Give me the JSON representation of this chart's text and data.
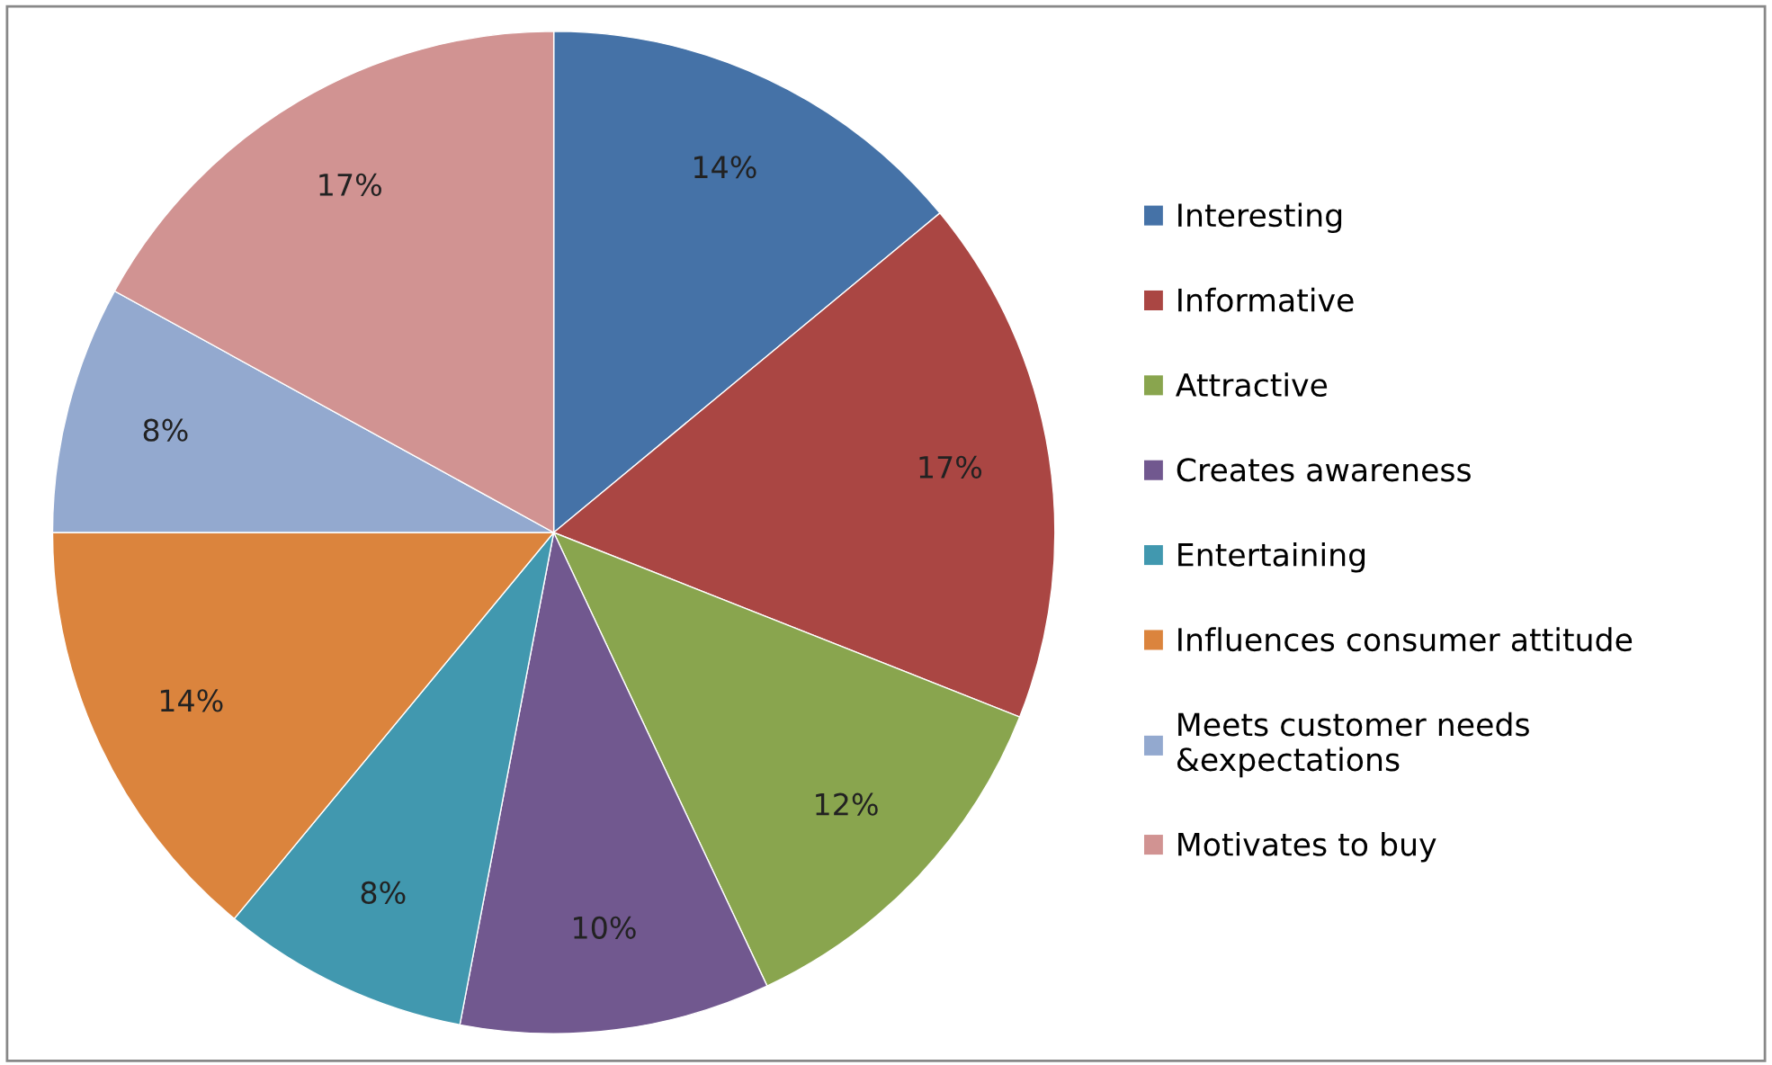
{
  "chart_data": {
    "type": "pie",
    "categories": [
      "Interesting",
      "Informative",
      "Attractive",
      "Creates awareness",
      "Entertaining",
      "Influences consumer attitude",
      "Meets customer needs\n&expectations",
      "Motivates to buy"
    ],
    "values": [
      14,
      17,
      12,
      10,
      8,
      14,
      8,
      17
    ],
    "colors": [
      "#4572a7",
      "#aa4643",
      "#89a54e",
      "#71588f",
      "#4198af",
      "#db843d",
      "#93a9cf",
      "#d19392"
    ],
    "value_labels": [
      "14%",
      "17%",
      "12%",
      "10%",
      "8%",
      "14%",
      "8%",
      "17%"
    ],
    "legend": "right"
  }
}
